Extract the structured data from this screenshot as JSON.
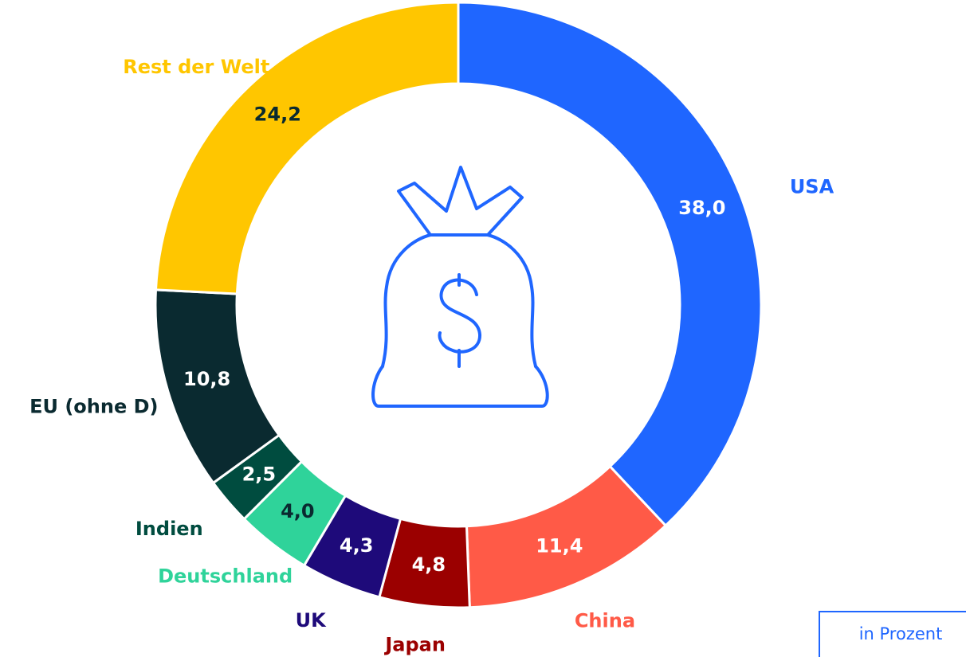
{
  "chart_data": {
    "type": "pie",
    "categories": [
      "USA",
      "China",
      "Japan",
      "UK",
      "Deutschland",
      "Indien",
      "EU (ohne D)",
      "Rest der Welt"
    ],
    "values": [
      38.0,
      11.4,
      4.8,
      4.3,
      4.0,
      2.5,
      10.8,
      24.2
    ],
    "value_labels": [
      "38,0",
      "11,4",
      "4,8",
      "4,3",
      "4,0",
      "2,5",
      "10,8",
      "24,2"
    ],
    "colors": [
      "#1f66ff",
      "#ff5a47",
      "#9b0000",
      "#1e0a7a",
      "#2fd39a",
      "#004c3f",
      "#0a2a30",
      "#ffc600"
    ],
    "note": "in Prozent"
  }
}
